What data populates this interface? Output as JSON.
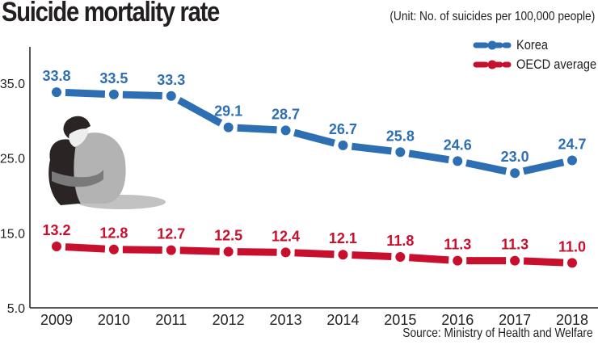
{
  "header": {
    "title": "Suicide mortality rate",
    "unit": "(Unit: No. of suicides per 100,000 people)"
  },
  "footer": {
    "source": "Source: Ministry of Health and Welfare"
  },
  "illustration": {
    "icon": "hugging-knees-person-icon"
  },
  "colors": {
    "korea": "#2e6fb3",
    "oecd": "#c8102e",
    "text": "#231f20"
  },
  "chart_data": {
    "type": "line",
    "title": "Suicide mortality rate",
    "subtitle": "(Unit: No. of suicides per 100,000 people)",
    "xlabel": "",
    "ylabel": "",
    "x": [
      "2009",
      "2010",
      "2011",
      "2012",
      "2013",
      "2014",
      "2015",
      "2016",
      "2017",
      "2018"
    ],
    "yticks": [
      "35.0",
      "25.0",
      "15.0",
      "5.0"
    ],
    "ytick_values": [
      35,
      25,
      15,
      5
    ],
    "ylim": [
      5,
      40
    ],
    "grid": false,
    "legend_position": "top-right",
    "series": [
      {
        "name": "Korea",
        "color": "#2e6fb3",
        "values": [
          33.8,
          33.5,
          33.3,
          29.1,
          28.7,
          26.7,
          25.8,
          24.6,
          23.0,
          24.7
        ],
        "labels": [
          "33.8",
          "33.5",
          "33.3",
          "29.1",
          "28.7",
          "26.7",
          "25.8",
          "24.6",
          "23.0",
          "24.7"
        ]
      },
      {
        "name": "OECD average",
        "color": "#c8102e",
        "values": [
          13.2,
          12.8,
          12.7,
          12.5,
          12.4,
          12.1,
          11.8,
          11.3,
          11.3,
          11.0
        ],
        "labels": [
          "13.2",
          "12.8",
          "12.7",
          "12.5",
          "12.4",
          "12.1",
          "11.8",
          "11.3",
          "11.3",
          "11.0"
        ]
      }
    ],
    "source": "Source: Ministry of Health and Welfare"
  }
}
